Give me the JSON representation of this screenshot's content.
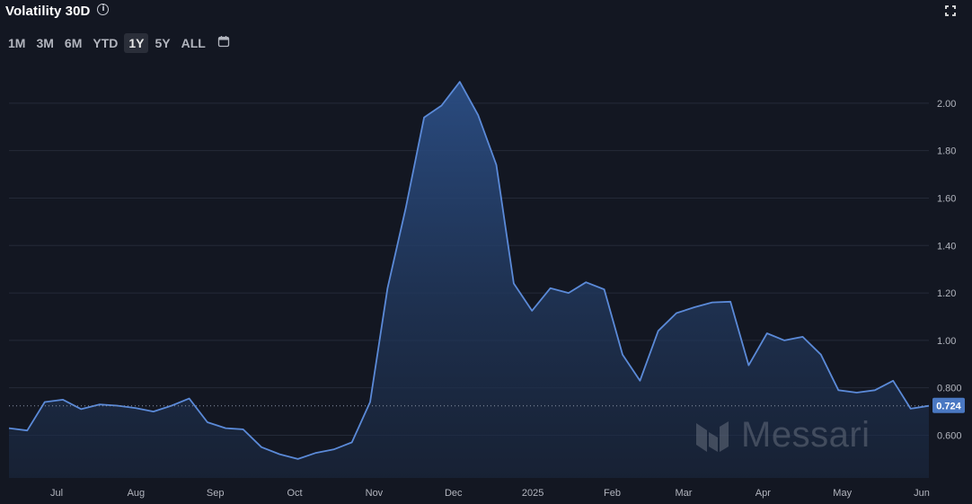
{
  "header": {
    "title": "Volatility 30D",
    "ranges": [
      "1M",
      "3M",
      "6M",
      "YTD",
      "1Y",
      "5Y",
      "ALL"
    ],
    "active_range": "1Y"
  },
  "watermark": {
    "brand": "Messari"
  },
  "colors": {
    "line": "#5b8ad8",
    "background": "#131722",
    "tag": "#4a78c2"
  },
  "chart_data": {
    "type": "area",
    "title": "Volatility 30D",
    "xlabel": "",
    "ylabel": "",
    "ylim": [
      0.42,
      2.17
    ],
    "y_ticks": [
      0.6,
      0.8,
      1.0,
      1.2,
      1.4,
      1.6,
      1.8,
      2.0
    ],
    "y_tick_labels": [
      "0.600",
      "0.800",
      "1.00",
      "1.20",
      "1.40",
      "1.60",
      "1.80",
      "2.00"
    ],
    "x_ticks": [
      {
        "label": "Jul",
        "t": 0.6
      },
      {
        "label": "Aug",
        "t": 1.6
      },
      {
        "label": "Sep",
        "t": 2.6
      },
      {
        "label": "Oct",
        "t": 3.6
      },
      {
        "label": "Nov",
        "t": 4.6
      },
      {
        "label": "Dec",
        "t": 5.6
      },
      {
        "label": "2025",
        "t": 6.6
      },
      {
        "label": "Feb",
        "t": 7.6
      },
      {
        "label": "Mar",
        "t": 8.5
      },
      {
        "label": "Apr",
        "t": 9.5
      },
      {
        "label": "May",
        "t": 10.5
      },
      {
        "label": "Jun",
        "t": 11.5
      }
    ],
    "current_value": 0.724,
    "current_label": "0.724",
    "grid": true,
    "series": [
      {
        "values": [
          [
            0.0,
            0.63
          ],
          [
            0.23,
            0.62
          ],
          [
            0.45,
            0.74
          ],
          [
            0.68,
            0.75
          ],
          [
            0.91,
            0.71
          ],
          [
            1.14,
            0.73
          ],
          [
            1.36,
            0.725
          ],
          [
            1.59,
            0.715
          ],
          [
            1.82,
            0.7
          ],
          [
            2.05,
            0.725
          ],
          [
            2.27,
            0.755
          ],
          [
            2.5,
            0.655
          ],
          [
            2.73,
            0.63
          ],
          [
            2.95,
            0.625
          ],
          [
            3.18,
            0.55
          ],
          [
            3.41,
            0.52
          ],
          [
            3.64,
            0.5
          ],
          [
            3.86,
            0.525
          ],
          [
            4.09,
            0.54
          ],
          [
            4.32,
            0.57
          ],
          [
            4.55,
            0.74
          ],
          [
            4.77,
            1.22
          ],
          [
            5.0,
            1.56
          ],
          [
            5.23,
            1.94
          ],
          [
            5.45,
            1.99
          ],
          [
            5.68,
            2.09
          ],
          [
            5.91,
            1.95
          ],
          [
            6.14,
            1.74
          ],
          [
            6.36,
            1.24
          ],
          [
            6.59,
            1.125
          ],
          [
            6.82,
            1.22
          ],
          [
            7.05,
            1.2
          ],
          [
            7.27,
            1.245
          ],
          [
            7.5,
            1.215
          ],
          [
            7.73,
            0.94
          ],
          [
            7.95,
            0.83
          ],
          [
            8.18,
            1.04
          ],
          [
            8.41,
            1.115
          ],
          [
            8.64,
            1.14
          ],
          [
            8.86,
            1.16
          ],
          [
            9.09,
            1.163
          ],
          [
            9.32,
            0.895
          ],
          [
            9.55,
            1.03
          ],
          [
            9.77,
            1.0
          ],
          [
            10.0,
            1.015
          ],
          [
            10.23,
            0.94
          ],
          [
            10.45,
            0.79
          ],
          [
            10.68,
            0.78
          ],
          [
            10.91,
            0.79
          ],
          [
            11.14,
            0.83
          ],
          [
            11.36,
            0.712
          ],
          [
            11.59,
            0.724
          ]
        ]
      }
    ]
  }
}
